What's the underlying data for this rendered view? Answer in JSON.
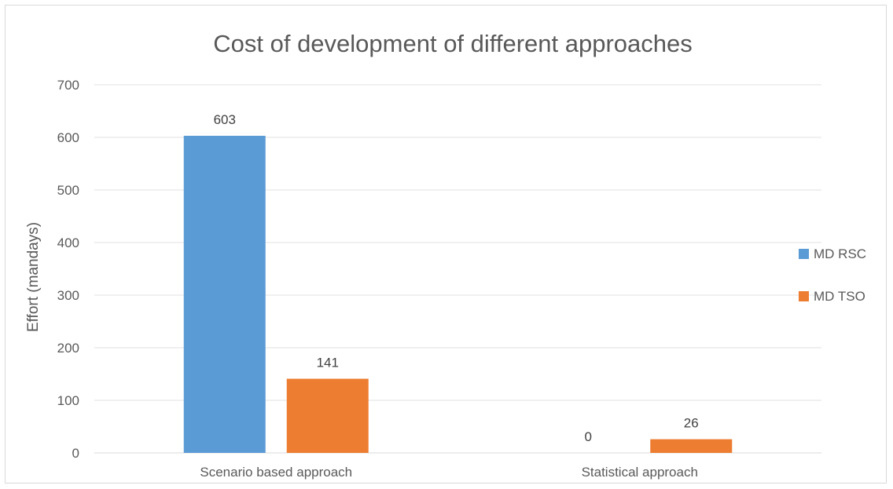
{
  "chart_data": {
    "type": "bar",
    "title": "Cost of development of different approaches",
    "xlabel": "",
    "ylabel": "Effort (mandays)",
    "ylim": [
      0,
      700
    ],
    "yticks": [
      0,
      100,
      200,
      300,
      400,
      500,
      600,
      700
    ],
    "grid": true,
    "legend_position": "right",
    "categories": [
      "Scenario based approach",
      "Statistical approach"
    ],
    "series": [
      {
        "name": "MD RSC",
        "color": "#5b9bd5",
        "values": [
          603,
          0
        ]
      },
      {
        "name": "MD TSO",
        "color": "#ed7d31",
        "values": [
          141,
          26
        ]
      }
    ],
    "data_labels": true
  }
}
